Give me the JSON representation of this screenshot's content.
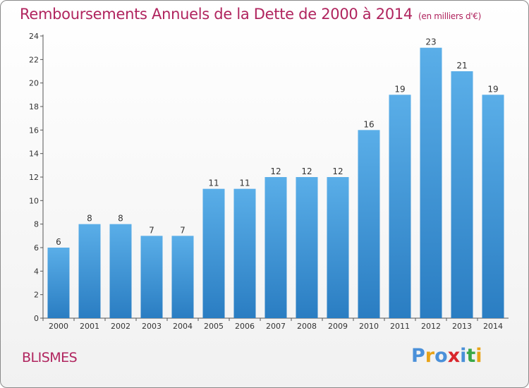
{
  "header": {
    "title": "Remboursements Annuels de la Dette de 2000 à 2014",
    "subtitle": "(en milliers d'€)"
  },
  "commune": "BLISMES",
  "logo": {
    "letters": [
      "P",
      "r",
      "o",
      "x",
      "i",
      "t",
      "i"
    ],
    "colors": [
      "#4a90d9",
      "#e8a317",
      "#4a90d9",
      "#d9262c",
      "#4a90d9",
      "#3aa847",
      "#e8a317"
    ]
  },
  "colors": {
    "bar_top": "#5aaee8",
    "bar_bottom": "#2a7dc2",
    "title": "#b0245e"
  },
  "chart_data": {
    "type": "bar",
    "categories": [
      "2000",
      "2001",
      "2002",
      "2003",
      "2004",
      "2005",
      "2006",
      "2007",
      "2008",
      "2009",
      "2010",
      "2011",
      "2012",
      "2013",
      "2014"
    ],
    "values": [
      6,
      8,
      8,
      7,
      7,
      11,
      11,
      12,
      12,
      12,
      16,
      19,
      23,
      21,
      19
    ],
    "title": "Remboursements Annuels de la Dette de 2000 à 2014",
    "subtitle": "(en milliers d'€)",
    "xlabel": "",
    "ylabel": "",
    "ylim": [
      0,
      24
    ],
    "yticks": [
      0,
      2,
      4,
      6,
      8,
      10,
      12,
      14,
      16,
      18,
      20,
      22,
      24
    ],
    "grid": false
  }
}
